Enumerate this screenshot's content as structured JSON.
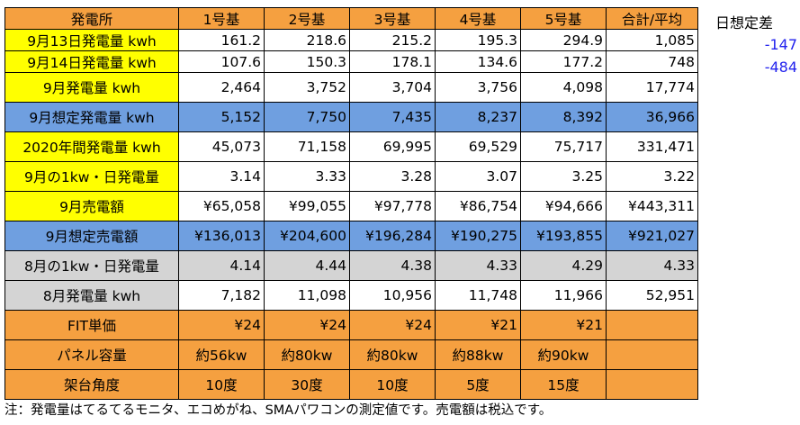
{
  "header": {
    "label": "発電所",
    "columns": [
      "1号基",
      "2号基",
      "3号基",
      "4号基",
      "5号基",
      "合計/平均"
    ]
  },
  "rows": [
    {
      "label": "9月13日発電量 kwh",
      "values": [
        "161.2",
        "218.6",
        "215.2",
        "195.3",
        "294.9",
        "1,085"
      ]
    },
    {
      "label": "9月14日発電量 kwh",
      "values": [
        "107.6",
        "150.3",
        "178.1",
        "134.6",
        "177.2",
        "748"
      ]
    },
    {
      "label": "9月発電量 kwh",
      "values": [
        "2,464",
        "3,752",
        "3,704",
        "3,756",
        "4,098",
        "17,774"
      ]
    },
    {
      "label": "9月想定発電量 kwh",
      "values": [
        "5,152",
        "7,750",
        "7,435",
        "8,237",
        "8,392",
        "36,966"
      ]
    },
    {
      "label": "2020年間発電量 kwh",
      "values": [
        "45,073",
        "71,158",
        "69,995",
        "69,529",
        "75,717",
        "331,471"
      ]
    },
    {
      "label": "9月の1kw・日発電量",
      "values": [
        "3.14",
        "3.33",
        "3.28",
        "3.07",
        "3.25",
        "3.22"
      ]
    },
    {
      "label": "9月売電額",
      "values": [
        "¥65,058",
        "¥99,055",
        "¥97,778",
        "¥86,754",
        "¥94,666",
        "¥443,311"
      ]
    },
    {
      "label": "9月想定売電額",
      "values": [
        "¥136,013",
        "¥204,600",
        "¥196,284",
        "¥190,275",
        "¥193,855",
        "¥921,027"
      ]
    },
    {
      "label": "8月の1kw・日発電量",
      "values": [
        "4.14",
        "4.44",
        "4.38",
        "4.33",
        "4.29",
        "4.33"
      ]
    },
    {
      "label": "8月発電量 kwh",
      "values": [
        "7,182",
        "11,098",
        "10,956",
        "11,748",
        "11,966",
        "52,951"
      ]
    },
    {
      "label": "FIT単価",
      "values": [
        "¥24",
        "¥24",
        "¥24",
        "¥21",
        "¥21",
        ""
      ]
    },
    {
      "label": "パネル容量",
      "values": [
        "約56kw",
        "約80kw",
        "約80kw",
        "約88kw",
        "約90kw",
        ""
      ]
    },
    {
      "label": "架台角度",
      "values": [
        "10度",
        "30度",
        "10度",
        "5度",
        "15度",
        ""
      ]
    }
  ],
  "side": {
    "title": "日想定差",
    "diffs": [
      "-147",
      "-484"
    ]
  },
  "note": "注：発電量はてるてるモニタ、エコめがね、SMAパワコンの測定値です。売電額は税込です。",
  "colors": {
    "orange": "#F5A040",
    "yellow": "#FFFF00",
    "blue": "#6F9FE0",
    "gray": "#D4D4D4",
    "diff_text": "#2222ee"
  }
}
